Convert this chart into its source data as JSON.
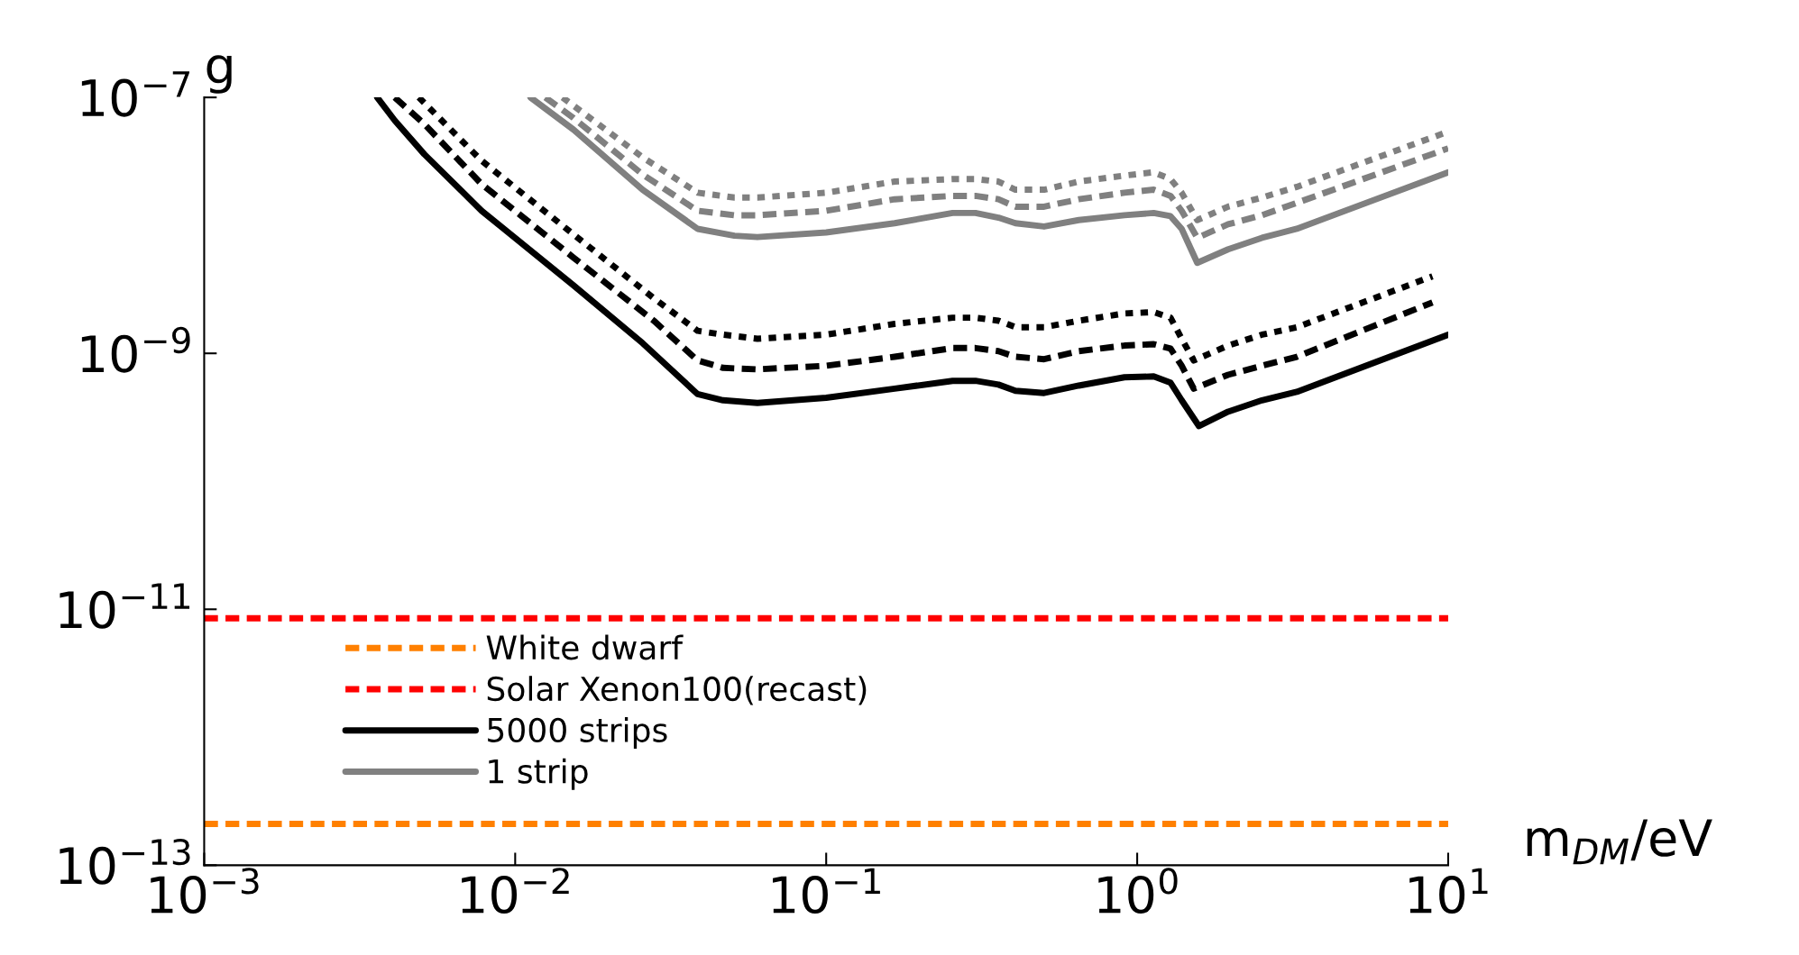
{
  "chart_data": {
    "type": "line",
    "xlabel": "m$_{DM}$/eV",
    "ylabel": "g",
    "log": "xy",
    "xlim": [
      0.001,
      10
    ],
    "ylim": [
      1e-13,
      1e-07
    ],
    "xticks": [
      {
        "value": 0.001,
        "label": "10$^{−3}$"
      },
      {
        "value": 0.01,
        "label": "10$^{−2}$"
      },
      {
        "value": 0.1,
        "label": "10$^{−1}$"
      },
      {
        "value": 1,
        "label": "10$^{0}$"
      },
      {
        "value": 10,
        "label": "10$^{1}$"
      }
    ],
    "yticks": [
      {
        "value": 1e-13,
        "label": "10$^{−13}$"
      },
      {
        "value": 1e-11,
        "label": "10$^{−11}$"
      },
      {
        "value": 1e-09,
        "label": "10$^{−9}$"
      },
      {
        "value": 1e-07,
        "label": "10$^{−7}$"
      }
    ],
    "grid": false,
    "legend": "bottom left",
    "marker": "none",
    "ref_lines": [
      {
        "axis": "y",
        "value": 2.1e-13,
        "label": "White dwarf",
        "color": "#ff8000",
        "line_style": "dashed"
      },
      {
        "axis": "y",
        "value": 8.5e-12,
        "label": "Solar Xenon100(recast)",
        "color": "#ff0000",
        "line_style": "dashed"
      }
    ],
    "series": [
      {
        "name": "5000 strips",
        "color": "#000000",
        "line_style": "solid",
        "x": [
          0.0036,
          0.0041,
          0.0051,
          0.0078,
          0.0154,
          0.0257,
          0.0386,
          0.0466,
          0.0601,
          0.1,
          0.166,
          0.255,
          0.302,
          0.358,
          0.406,
          0.502,
          0.649,
          0.91,
          1.13,
          1.28,
          1.39,
          1.58,
          1.96,
          2.52,
          3.26,
          10
        ],
        "values": [
          1e-07,
          6.6e-08,
          3.6e-08,
          1.3e-08,
          3.4e-09,
          1.2e-09,
          4.8e-10,
          4.3e-10,
          4.1e-10,
          4.5e-10,
          5.3e-10,
          6.1e-10,
          6.1e-10,
          5.7e-10,
          5.1e-10,
          4.9e-10,
          5.6e-10,
          6.5e-10,
          6.6e-10,
          5.9e-10,
          4.3e-10,
          2.7e-10,
          3.5e-10,
          4.3e-10,
          5e-10,
          1.4e-09
        ]
      },
      {
        "color": "#000000",
        "line_style": "dashed",
        "x": [
          0.0041,
          0.0051,
          0.0078,
          0.0154,
          0.0279,
          0.0386,
          0.0466,
          0.0601,
          0.1,
          0.166,
          0.255,
          0.302,
          0.358,
          0.406,
          0.502,
          0.649,
          0.91,
          1.13,
          1.28,
          1.39,
          1.52,
          1.96,
          2.52,
          3.26,
          8.9
        ],
        "values": [
          1e-07,
          6.2e-08,
          2.1e-08,
          5.6e-09,
          1.8e-09,
          8.8e-10,
          7.7e-10,
          7.5e-10,
          8e-10,
          9.4e-10,
          1.1e-09,
          1.1e-09,
          1.04e-09,
          9.4e-10,
          9e-10,
          1.04e-09,
          1.15e-09,
          1.18e-09,
          1.09e-09,
          8e-10,
          5.3e-10,
          6.8e-10,
          8e-10,
          9.4e-10,
          2.5e-09
        ]
      },
      {
        "color": "#000000",
        "line_style": "dotted",
        "x": [
          0.0049,
          0.0078,
          0.0154,
          0.0279,
          0.0386,
          0.0466,
          0.0601,
          0.1,
          0.166,
          0.255,
          0.302,
          0.358,
          0.406,
          0.502,
          0.649,
          0.91,
          1.13,
          1.28,
          1.39,
          1.52,
          1.96,
          2.52,
          3.26,
          8.9
        ],
        "values": [
          1e-07,
          3.2e-08,
          8.5e-09,
          2.7e-09,
          1.5e-09,
          1.4e-09,
          1.3e-09,
          1.4e-09,
          1.7e-09,
          1.9e-09,
          1.9e-09,
          1.8e-09,
          1.6e-09,
          1.6e-09,
          1.8e-09,
          2.05e-09,
          2.1e-09,
          1.9e-09,
          1.3e-09,
          8.8e-10,
          1.15e-09,
          1.4e-09,
          1.6e-09,
          4e-09
        ]
      },
      {
        "name": "1 strip",
        "color": "#808080",
        "line_style": "solid",
        "x": [
          0.0112,
          0.0154,
          0.0257,
          0.0386,
          0.0507,
          0.0601,
          0.1,
          0.166,
          0.255,
          0.302,
          0.358,
          0.406,
          0.502,
          0.649,
          0.91,
          1.13,
          1.28,
          1.39,
          1.56,
          1.96,
          2.52,
          3.26,
          10
        ],
        "values": [
          1e-07,
          5.6e-08,
          1.9e-08,
          9.4e-09,
          8.3e-09,
          8.1e-09,
          8.8e-09,
          1.04e-08,
          1.25e-08,
          1.25e-08,
          1.15e-08,
          1.04e-08,
          9.8e-09,
          1.1e-08,
          1.2e-08,
          1.25e-08,
          1.18e-08,
          9.4e-09,
          5.1e-09,
          6.5e-09,
          8e-09,
          9.4e-09,
          2.6e-08
        ]
      },
      {
        "color": "#808080",
        "line_style": "dashed",
        "x": [
          0.0125,
          0.0154,
          0.0257,
          0.0386,
          0.0507,
          0.0601,
          0.1,
          0.166,
          0.255,
          0.302,
          0.358,
          0.406,
          0.502,
          0.649,
          0.91,
          1.13,
          1.28,
          1.39,
          1.56,
          1.96,
          2.52,
          3.26,
          10
        ],
        "values": [
          1e-07,
          6.9e-08,
          2.5e-08,
          1.3e-08,
          1.2e-08,
          1.2e-08,
          1.3e-08,
          1.6e-08,
          1.7e-08,
          1.7e-08,
          1.6e-08,
          1.4e-08,
          1.4e-08,
          1.6e-08,
          1.8e-08,
          1.9e-08,
          1.7e-08,
          1.3e-08,
          8e-09,
          1.02e-08,
          1.2e-08,
          1.5e-08,
          4e-08
        ]
      },
      {
        "color": "#808080",
        "line_style": "dotted",
        "x": [
          0.0142,
          0.0257,
          0.0386,
          0.0507,
          0.0601,
          0.1,
          0.166,
          0.255,
          0.302,
          0.358,
          0.406,
          0.502,
          0.649,
          0.91,
          1.13,
          1.28,
          1.39,
          1.56,
          1.96,
          2.52,
          3.26,
          10
        ],
        "values": [
          1e-07,
          3.4e-08,
          1.8e-08,
          1.65e-08,
          1.65e-08,
          1.8e-08,
          2.2e-08,
          2.3e-08,
          2.3e-08,
          2.2e-08,
          1.9e-08,
          1.9e-08,
          2.2e-08,
          2.45e-08,
          2.6e-08,
          2.3e-08,
          1.8e-08,
          1.1e-08,
          1.4e-08,
          1.65e-08,
          2e-08,
          5.4e-08
        ]
      }
    ]
  }
}
